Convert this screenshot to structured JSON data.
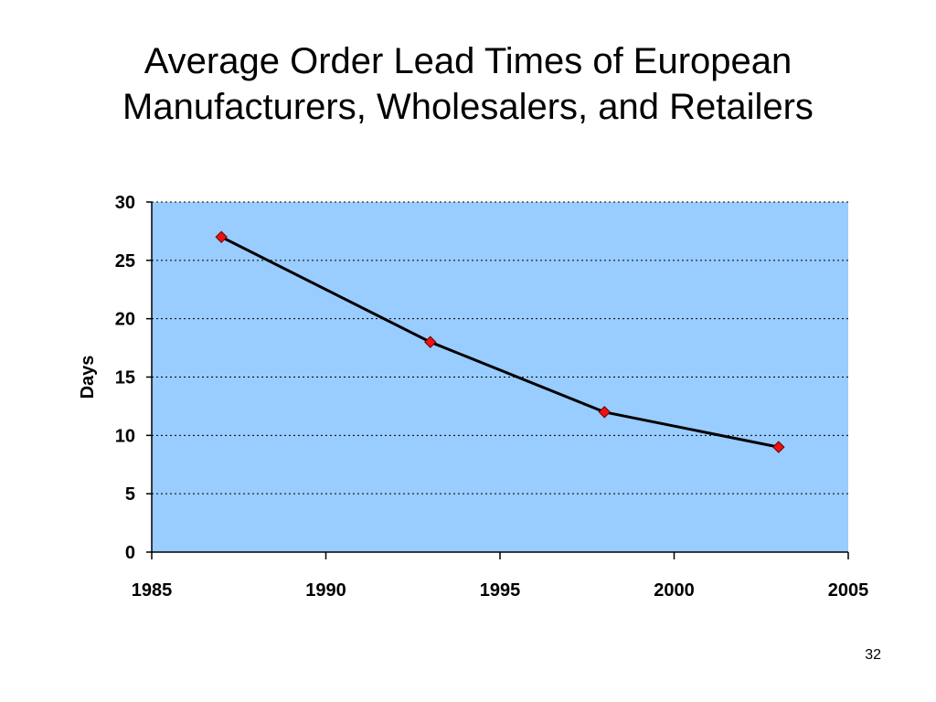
{
  "slide": {
    "title_line1": "Average Order Lead Times of European",
    "title_line2": "Manufacturers, Wholesalers, and Retailers",
    "page_number": "32"
  },
  "colors": {
    "plot_background": "#99ccff",
    "line": "#000000",
    "marker_fill": "#ee1111",
    "marker_stroke": "#660000",
    "gridline": "#000000"
  },
  "chart_data": {
    "type": "line",
    "title": "",
    "xlabel": "",
    "ylabel": "Days",
    "x": [
      1987,
      1993,
      1998,
      2003
    ],
    "series": [
      {
        "values": [
          27,
          18,
          12,
          9
        ]
      }
    ],
    "xlim": [
      1985,
      2005
    ],
    "ylim": [
      0,
      30
    ],
    "x_ticks": [
      1985,
      1990,
      1995,
      2000,
      2005
    ],
    "y_ticks": [
      0,
      5,
      10,
      15,
      20,
      25,
      30
    ],
    "grid": "horizontal dotted",
    "marker": "diamond",
    "legend": "none"
  }
}
